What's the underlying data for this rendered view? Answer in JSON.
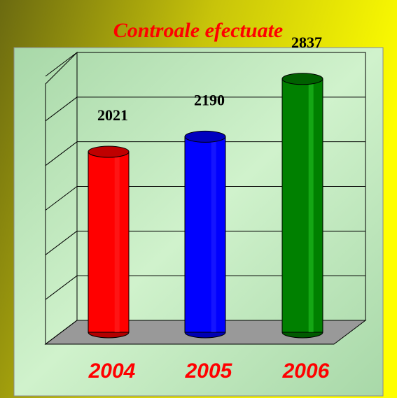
{
  "chart_data": {
    "type": "bar",
    "title": "Controale efectuate",
    "categories": [
      "2004",
      "2005",
      "2006"
    ],
    "values": [
      2021,
      2190,
      2837
    ],
    "colors": [
      "#ff0000",
      "#0000ff",
      "#008000"
    ],
    "ylim": [
      0,
      3000
    ],
    "yticks": [
      0,
      500,
      1000,
      1500,
      2000,
      2500,
      3000
    ],
    "grid": true
  }
}
